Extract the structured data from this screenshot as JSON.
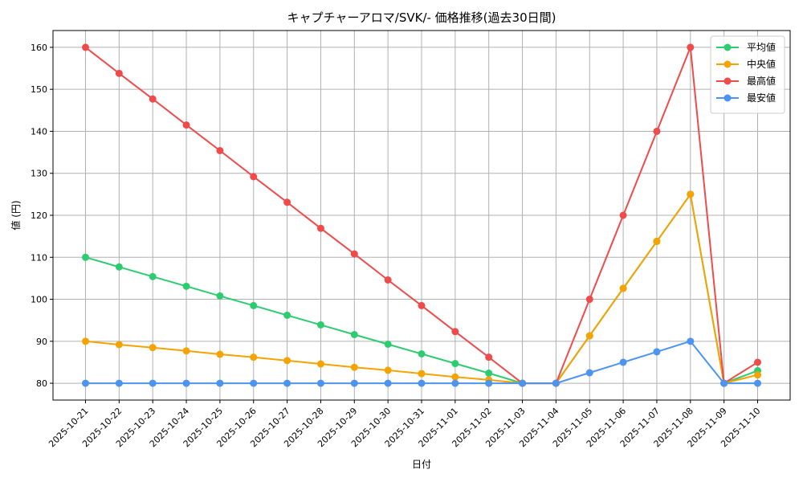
{
  "chart_data": {
    "type": "line",
    "title": "キャプチャーアロマ/SVK/- 価格推移(過去30日間)",
    "xlabel": "日付",
    "ylabel": "値 (円)",
    "ylim": [
      76,
      164
    ],
    "yticks": [
      80,
      90,
      100,
      110,
      120,
      130,
      140,
      150,
      160
    ],
    "grid": true,
    "legend_position": "top-right",
    "categories": [
      "2025-10-21",
      "2025-10-22",
      "2025-10-23",
      "2025-10-24",
      "2025-10-25",
      "2025-10-26",
      "2025-10-27",
      "2025-10-28",
      "2025-10-29",
      "2025-10-30",
      "2025-10-31",
      "2025-11-01",
      "2025-11-02",
      "2025-11-03",
      "2025-11-04",
      "2025-11-05",
      "2025-11-06",
      "2025-11-07",
      "2025-11-08",
      "2025-11-09",
      "2025-11-10"
    ],
    "series": [
      {
        "name": "平均値",
        "color": "#2ecc71",
        "values": [
          110,
          107.7,
          105.4,
          103.1,
          100.8,
          98.5,
          96.2,
          93.9,
          91.6,
          89.3,
          87.0,
          84.7,
          82.4,
          80,
          80,
          91.3,
          102.6,
          113.8,
          125,
          80,
          83
        ]
      },
      {
        "name": "中央値",
        "color": "#f5a300",
        "values": [
          90,
          89.2,
          88.5,
          87.7,
          86.9,
          86.2,
          85.4,
          84.6,
          83.8,
          83.1,
          82.3,
          81.5,
          80.8,
          80,
          80,
          91.3,
          102.6,
          113.8,
          125,
          80,
          82
        ]
      },
      {
        "name": "最高値",
        "color": "#ef4b4b",
        "values": [
          160,
          153.8,
          147.7,
          141.5,
          135.4,
          129.2,
          123.1,
          116.9,
          110.8,
          104.6,
          98.5,
          92.3,
          86.2,
          80,
          80,
          100,
          120,
          140,
          160,
          80,
          85
        ]
      },
      {
        "name": "最安値",
        "color": "#4d94f0",
        "values": [
          80,
          80,
          80,
          80,
          80,
          80,
          80,
          80,
          80,
          80,
          80,
          80,
          80,
          80,
          80,
          82.5,
          85,
          87.5,
          90,
          80,
          80
        ]
      }
    ]
  }
}
